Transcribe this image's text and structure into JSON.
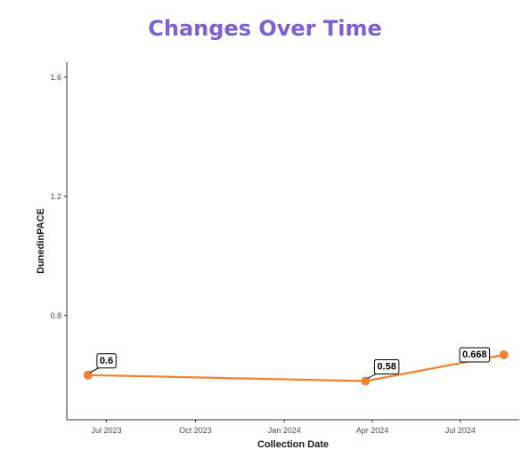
{
  "page": {
    "title": "Changes Over Time",
    "title_color": "#7b61d9"
  },
  "chart_data": {
    "type": "line",
    "title": "Changes Over Time",
    "xlabel": "Collection Date",
    "ylabel": "DunedinPACE",
    "x_ticks": [
      "2023-07-01",
      "2023-10-01",
      "2024-01-01",
      "2024-04-01",
      "2024-07-01"
    ],
    "x_tick_labels": [
      "Jul 2023",
      "Oct 2023",
      "Jan 2024",
      "Apr 2024",
      "Jul 2024"
    ],
    "y_ticks": [
      0.8,
      1.2,
      1.6
    ],
    "y_tick_labels": [
      "0.8",
      "1.2",
      "1.6"
    ],
    "xlim": [
      "2023-05-21",
      "2024-08-31"
    ],
    "ylim": [
      0.45,
      1.65
    ],
    "grid": false,
    "series": [
      {
        "color": "#f28230",
        "points": [
          {
            "x": "2023-06-12",
            "y": 0.6,
            "label": "0.6"
          },
          {
            "x": "2024-03-25",
            "y": 0.58,
            "label": "0.58"
          },
          {
            "x": "2024-08-15",
            "y": 0.668,
            "label": "0.668"
          }
        ]
      }
    ]
  }
}
